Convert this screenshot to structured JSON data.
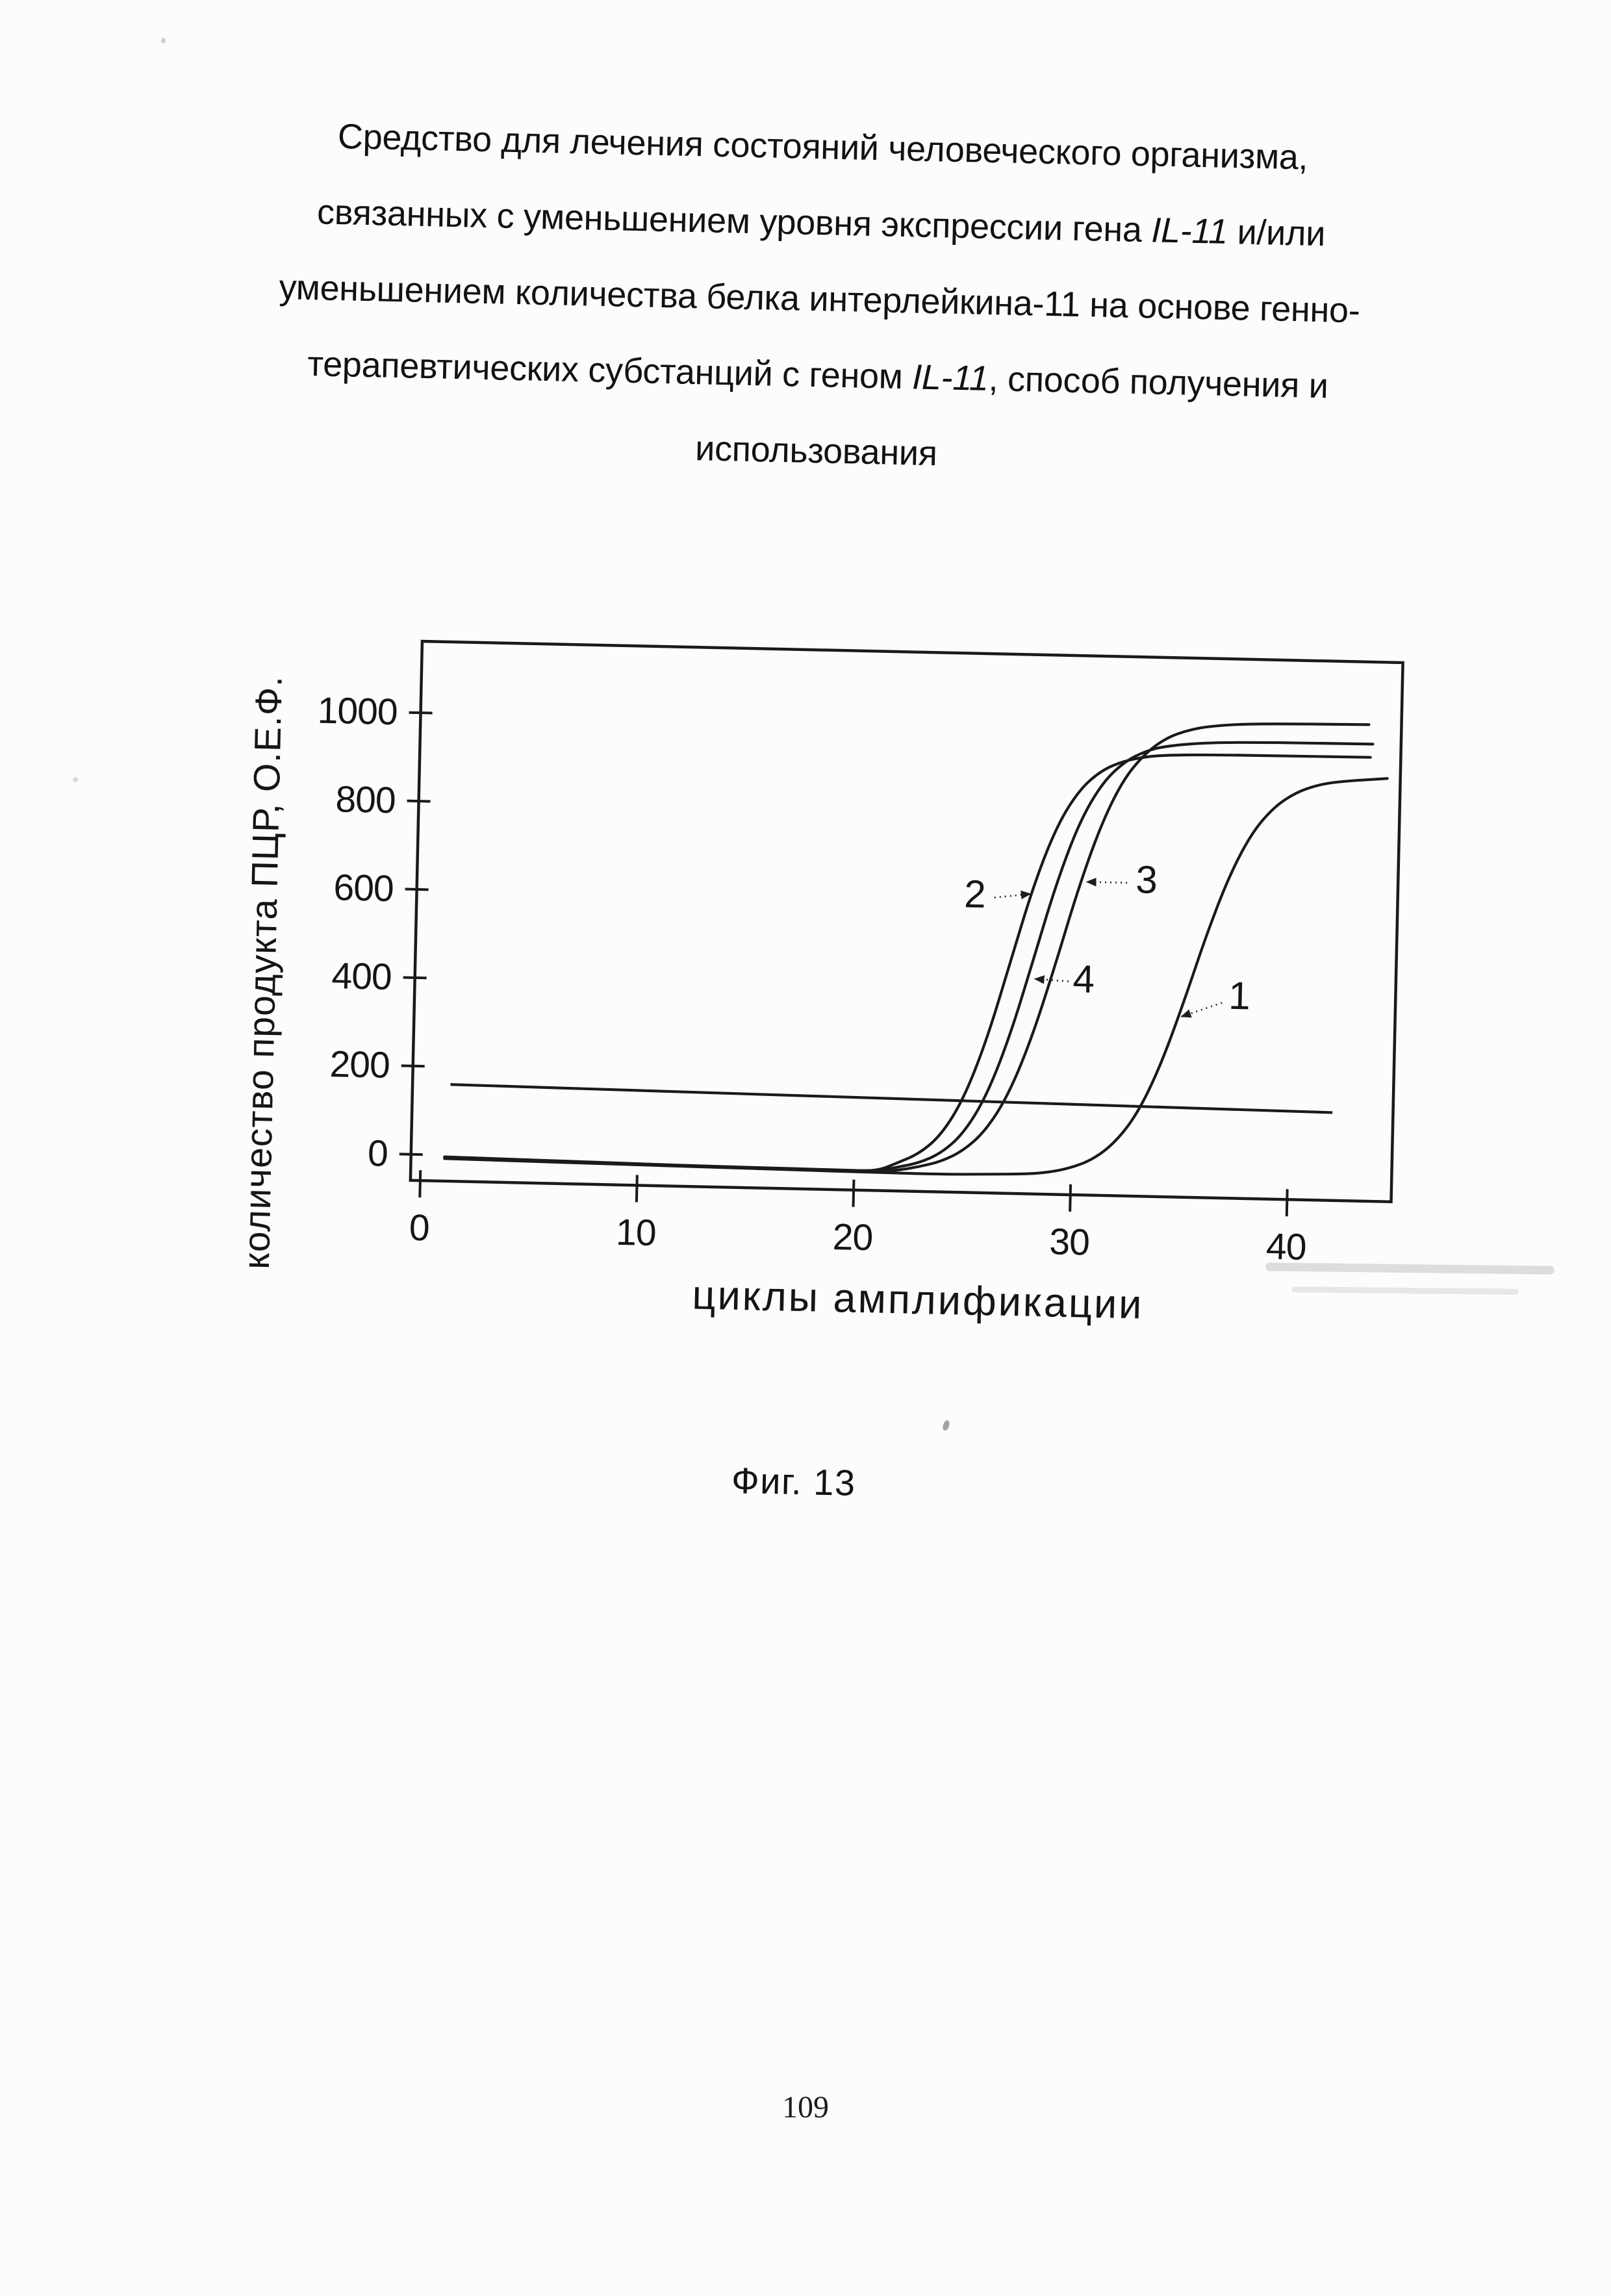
{
  "document": {
    "title_lines": [
      [
        {
          "t": "Средство для лечения состояний человеческого организма,"
        }
      ],
      [
        {
          "t": "связанных с уменьшением уровня экспрессии гена "
        },
        {
          "t": "IL-11",
          "i": true
        },
        {
          "t": " и/или"
        }
      ],
      [
        {
          "t": "уменьшением количества белка интерлейкина-11 на основе генно-"
        }
      ],
      [
        {
          "t": "терапевтических субстанций с геном "
        },
        {
          "t": "IL-11",
          "i": true
        },
        {
          "t": ", способ получения и"
        }
      ],
      [
        {
          "t": "использования"
        }
      ]
    ],
    "figure_caption": "Фиг. 13",
    "page_number": "109"
  },
  "chart_data": {
    "type": "line",
    "title": "",
    "xlabel": "циклы амплификации",
    "ylabel": "количество продукта ПЦР, О.Е.Ф.",
    "x_ticks": [
      0,
      10,
      20,
      30,
      40
    ],
    "y_ticks": [
      0,
      200,
      400,
      600,
      800,
      1000
    ],
    "xlim": [
      -0.45,
      44.8
    ],
    "ylim": [
      -59,
      1162
    ],
    "grid": false,
    "legend": "none",
    "line_color": "#1a1a1a",
    "series": [
      {
        "name": "2",
        "points": [
          [
            1.1,
            -5
          ],
          [
            4,
            -7
          ],
          [
            7,
            -9
          ],
          [
            10,
            -11
          ],
          [
            13,
            -13
          ],
          [
            16,
            -14
          ],
          [
            19,
            -15
          ],
          [
            21,
            -16
          ],
          [
            22,
            5
          ],
          [
            23,
            27
          ],
          [
            24,
            71
          ],
          [
            25,
            155
          ],
          [
            26,
            289
          ],
          [
            27,
            465
          ],
          [
            28,
            641
          ],
          [
            29,
            775
          ],
          [
            30,
            858
          ],
          [
            31,
            903
          ],
          [
            32,
            925
          ],
          [
            33,
            936
          ],
          [
            34,
            941
          ],
          [
            36,
            944
          ],
          [
            39,
            945
          ],
          [
            43.4,
            946
          ]
        ]
      },
      {
        "name": "4",
        "points": [
          [
            1.1,
            -4
          ],
          [
            4,
            -6
          ],
          [
            7,
            -8
          ],
          [
            10,
            -10
          ],
          [
            13,
            -12
          ],
          [
            16,
            -13
          ],
          [
            19,
            -14
          ],
          [
            21,
            -15
          ],
          [
            22,
            -5
          ],
          [
            23,
            6
          ],
          [
            24,
            29
          ],
          [
            25,
            74
          ],
          [
            26,
            157
          ],
          [
            27,
            289
          ],
          [
            28,
            461
          ],
          [
            29,
            639
          ],
          [
            30,
            780
          ],
          [
            31,
            871
          ],
          [
            32,
            922
          ],
          [
            33,
            949
          ],
          [
            34,
            962
          ],
          [
            36,
            972
          ],
          [
            39,
            975
          ],
          [
            43.5,
            976
          ]
        ]
      },
      {
        "name": "3",
        "points": [
          [
            1.1,
            -6
          ],
          [
            4,
            -8
          ],
          [
            7,
            -10
          ],
          [
            10,
            -12
          ],
          [
            13,
            -14
          ],
          [
            16,
            -15
          ],
          [
            19,
            -16
          ],
          [
            21,
            -17
          ],
          [
            22,
            -12
          ],
          [
            23,
            -3
          ],
          [
            24,
            10
          ],
          [
            25,
            35
          ],
          [
            26,
            80
          ],
          [
            27,
            160
          ],
          [
            28,
            285
          ],
          [
            29,
            448
          ],
          [
            30,
            625
          ],
          [
            31,
            775
          ],
          [
            32,
            882
          ],
          [
            33,
            944
          ],
          [
            34,
            981
          ],
          [
            35,
            999
          ],
          [
            36,
            1009
          ],
          [
            38,
            1017
          ],
          [
            43.3,
            1020
          ]
        ]
      },
      {
        "name": "1",
        "points": [
          [
            1.1,
            -8
          ],
          [
            5,
            -10
          ],
          [
            9,
            -12
          ],
          [
            13,
            -14
          ],
          [
            17,
            -16
          ],
          [
            21,
            -18
          ],
          [
            24,
            -19
          ],
          [
            26,
            -17
          ],
          [
            28,
            -14
          ],
          [
            29,
            -9
          ],
          [
            30,
            2
          ],
          [
            31,
            22
          ],
          [
            32,
            61
          ],
          [
            33,
            127
          ],
          [
            34,
            234
          ],
          [
            35,
            377
          ],
          [
            36,
            534
          ],
          [
            37,
            670
          ],
          [
            38,
            769
          ],
          [
            39,
            829
          ],
          [
            40,
            863
          ],
          [
            41,
            881
          ],
          [
            42,
            890
          ],
          [
            44.2,
            899
          ]
        ]
      }
    ],
    "threshold_line": {
      "points": [
        [
          1.3,
          160
        ],
        [
          42,
          140
        ]
      ]
    },
    "curve_labels": [
      {
        "text": "2",
        "x": 25.3,
        "y": 617,
        "leader": [
          [
            26.2,
            610
          ],
          [
            27.85,
            620
          ]
        ]
      },
      {
        "text": "3",
        "x": 33.2,
        "y": 658,
        "leader": [
          [
            32.3,
            650
          ],
          [
            30.45,
            650
          ]
        ]
      },
      {
        "text": "4",
        "x": 30.4,
        "y": 430,
        "leader": [
          [
            29.7,
            424
          ],
          [
            28.15,
            428
          ]
        ]
      },
      {
        "text": "1",
        "x": 37.6,
        "y": 400,
        "leader": [
          [
            36.8,
            383
          ],
          [
            34.95,
            350
          ]
        ]
      }
    ]
  }
}
